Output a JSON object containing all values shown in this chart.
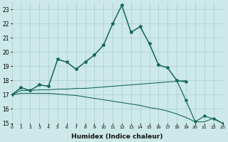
{
  "x_all": [
    0,
    1,
    2,
    3,
    4,
    5,
    6,
    7,
    8,
    9,
    10,
    11,
    12,
    13,
    14,
    15,
    16,
    17,
    18,
    19,
    20,
    21,
    22,
    23
  ],
  "line_main": [
    17.0,
    17.5,
    17.3,
    17.7,
    17.6,
    19.5,
    19.3,
    18.8,
    19.3,
    19.8,
    20.5,
    22.0,
    23.3,
    21.4,
    21.8,
    20.6,
    19.1,
    18.9,
    18.0,
    16.6,
    15.1,
    15.5,
    15.3,
    15.0
  ],
  "line_short": [
    17.0,
    17.5,
    17.3,
    17.7,
    17.6,
    19.5,
    19.3,
    18.8,
    19.3,
    19.8,
    20.5,
    22.0,
    23.3,
    21.4,
    21.8,
    20.6,
    19.1,
    18.9,
    18.0,
    17.9,
    null,
    null,
    null,
    null
  ],
  "line_flat_up": [
    17.0,
    17.3,
    17.3,
    17.35,
    17.35,
    17.4,
    17.4,
    17.45,
    17.45,
    17.5,
    17.55,
    17.6,
    17.65,
    17.7,
    17.75,
    17.8,
    17.85,
    17.9,
    17.95,
    18.0,
    null,
    null,
    null,
    null
  ],
  "line_flat_down": [
    17.0,
    17.1,
    17.1,
    17.1,
    17.1,
    17.05,
    17.0,
    16.95,
    16.85,
    16.75,
    16.65,
    16.55,
    16.45,
    16.35,
    16.25,
    16.1,
    16.0,
    15.85,
    15.65,
    15.4,
    15.1,
    15.1,
    15.35,
    15.0
  ],
  "bg_color": "#cce8e8",
  "line_color": "#1a6b5a",
  "grid_color": "#aacece",
  "xlabel": "Humidex (Indice chaleur)",
  "xlim": [
    0,
    23
  ],
  "ylim": [
    15,
    23.5
  ],
  "xticks": [
    0,
    1,
    2,
    3,
    4,
    5,
    6,
    7,
    8,
    9,
    10,
    11,
    12,
    13,
    14,
    15,
    16,
    17,
    18,
    19,
    20,
    21,
    22,
    23
  ],
  "yticks": [
    15,
    16,
    17,
    18,
    19,
    20,
    21,
    22,
    23
  ]
}
